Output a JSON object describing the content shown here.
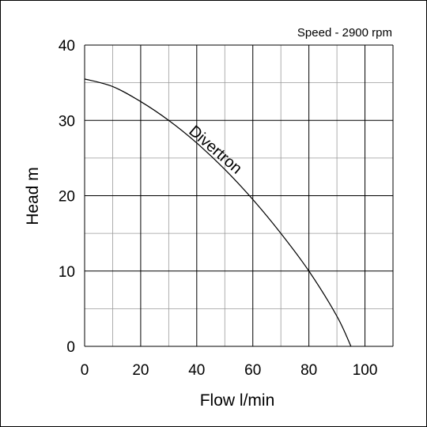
{
  "chart_data": {
    "type": "line",
    "title": "",
    "annotation": "Speed - 2900 rpm",
    "xlabel": "Flow l/min",
    "ylabel": "Head m",
    "xlim": [
      0,
      110
    ],
    "ylim": [
      0,
      40
    ],
    "x_ticks": [
      0,
      20,
      40,
      60,
      80,
      100
    ],
    "x_tick_labels": [
      "0",
      "20",
      "40",
      "60",
      "80",
      "100"
    ],
    "y_ticks": [
      0,
      10,
      20,
      30,
      40
    ],
    "y_tick_labels": [
      "0",
      "10",
      "20",
      "30",
      "40"
    ],
    "grid": true,
    "series": [
      {
        "name": "Divertron",
        "x": [
          0,
          10,
          20,
          30,
          40,
          50,
          60,
          70,
          80,
          90,
          95
        ],
        "y": [
          35.5,
          34.5,
          32.5,
          30.0,
          27.0,
          23.5,
          19.5,
          15.0,
          10.0,
          4.0,
          0.0
        ]
      }
    ]
  }
}
